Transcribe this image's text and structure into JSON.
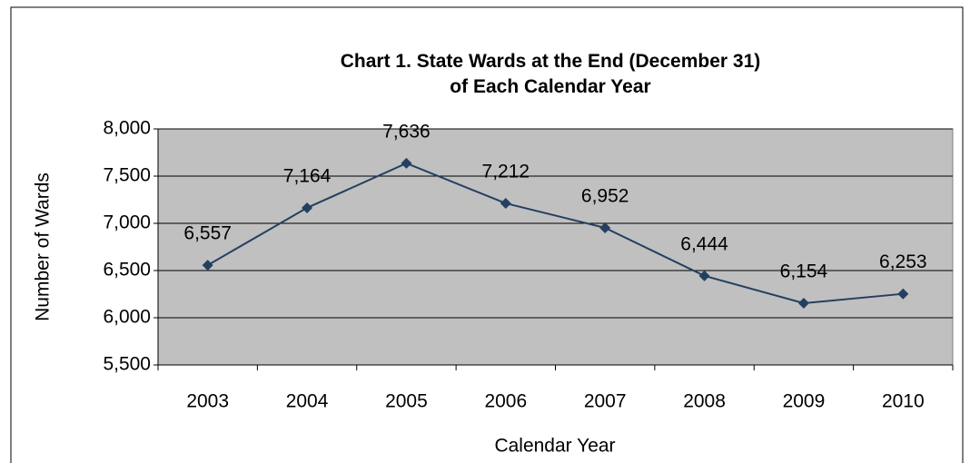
{
  "chart_data": {
    "type": "line",
    "title": "Chart 1. State Wards at the End (December 31)\nof Each Calendar Year",
    "xlabel": "Calendar Year",
    "ylabel": "Number of Wards",
    "categories": [
      "2003",
      "2004",
      "2005",
      "2006",
      "2007",
      "2008",
      "2009",
      "2010"
    ],
    "series": [
      {
        "name": "State Wards",
        "color": "#243f60",
        "values": [
          6557,
          7164,
          7636,
          7212,
          6952,
          6444,
          6154,
          6253
        ],
        "value_labels": [
          "6,557",
          "7,164",
          "7,636",
          "7,212",
          "6,952",
          "6,444",
          "6,154",
          "6,253"
        ]
      }
    ],
    "ylim": [
      5500,
      8000
    ],
    "yticks": [
      {
        "value": 5500,
        "label": "5,500"
      },
      {
        "value": 6000,
        "label": "6,000"
      },
      {
        "value": 6500,
        "label": "6,500"
      },
      {
        "value": 7000,
        "label": "7,000"
      },
      {
        "value": 7500,
        "label": "7,500"
      },
      {
        "value": 8000,
        "label": "8,000"
      }
    ],
    "grid": true,
    "plot_background": "#c0c0c0"
  }
}
